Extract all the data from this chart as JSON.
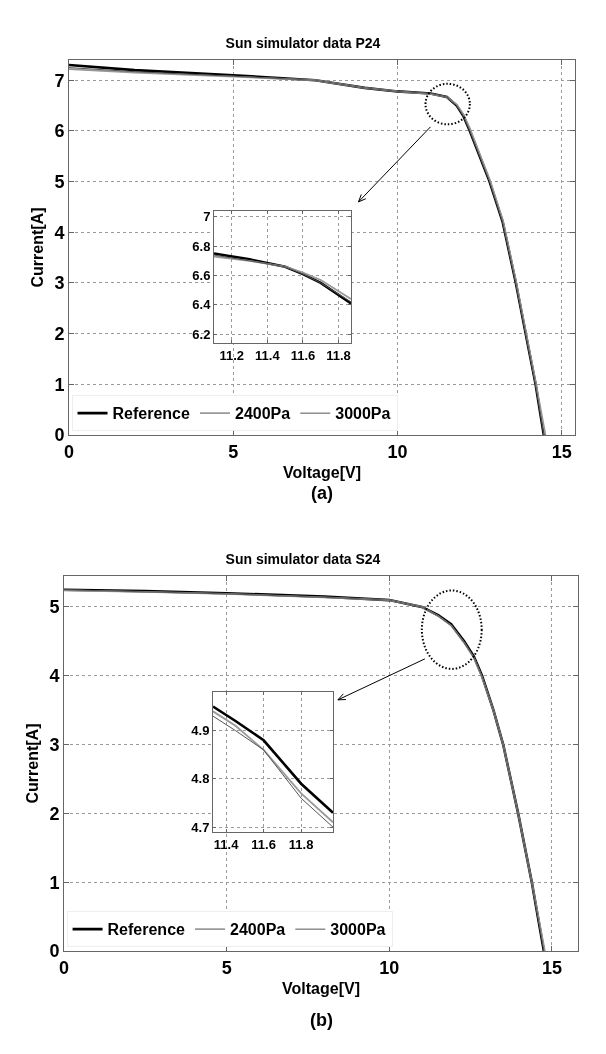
{
  "chart_data": [
    {
      "type": "line",
      "title": "Sun simulator data P24",
      "xlabel": "Voltage[V]",
      "ylabel": "Current[A]",
      "annotations": [
        "(a)"
      ],
      "xlim": [
        0,
        15.4
      ],
      "ylim": [
        0,
        7.4
      ],
      "xticks": [
        0,
        5,
        10,
        15
      ],
      "yticks": [
        0,
        1,
        2,
        3,
        4,
        5,
        6,
        7
      ],
      "grid": true,
      "legend": "bottom left",
      "line_style": "solid",
      "marker": "none",
      "series": [
        {
          "name": "Reference",
          "color": "#000000",
          "x": [
            0,
            2,
            5,
            7.5,
            9,
            10,
            11,
            11.5,
            11.8,
            12,
            12.2,
            12.5,
            12.8,
            13.2,
            13.6,
            13.9,
            14.2,
            14.45
          ],
          "values": [
            7.3,
            7.2,
            7.1,
            7.0,
            6.85,
            6.78,
            6.74,
            6.67,
            6.5,
            6.3,
            6.0,
            5.5,
            5.0,
            4.2,
            3.0,
            2.0,
            1.0,
            0
          ]
        },
        {
          "name": "2400Pa",
          "color": "#999999",
          "x": [
            0,
            2,
            5,
            7.5,
            9,
            10,
            11,
            11.5,
            11.8,
            12,
            12.2,
            12.5,
            12.8,
            13.2,
            13.6,
            13.9,
            14.2,
            14.5
          ],
          "values": [
            7.22,
            7.15,
            7.07,
            7.0,
            6.85,
            6.78,
            6.73,
            6.67,
            6.52,
            6.33,
            6.05,
            5.55,
            5.05,
            4.25,
            3.05,
            2.05,
            1.05,
            0
          ]
        },
        {
          "name": "3000Pa",
          "color": "#555555",
          "x": [
            0,
            2,
            5,
            7.5,
            9,
            10,
            11,
            11.5,
            11.8,
            12,
            12.2,
            12.5,
            12.8,
            13.2,
            13.6,
            13.9,
            14.2,
            14.45
          ],
          "values": [
            7.25,
            7.17,
            7.08,
            7.0,
            6.85,
            6.78,
            6.74,
            6.67,
            6.5,
            6.3,
            6.0,
            5.5,
            5.0,
            4.2,
            3.0,
            2.0,
            1.0,
            0
          ]
        }
      ]
    },
    {
      "type": "line",
      "xlim": [
        11.1,
        11.87
      ],
      "ylim": [
        6.14,
        7.04
      ],
      "xticks": [
        11.2,
        11.4,
        11.6,
        11.8
      ],
      "yticks": [
        6.2,
        6.4,
        6.6,
        6.8,
        7
      ],
      "grid": true,
      "line_style": "solid",
      "marker": "none",
      "series": [
        {
          "color": "#000000",
          "x": [
            11.1,
            11.3,
            11.5,
            11.6,
            11.7,
            11.87
          ],
          "values": [
            6.75,
            6.71,
            6.66,
            6.61,
            6.55,
            6.41
          ]
        },
        {
          "color": "#999999",
          "x": [
            11.1,
            11.3,
            11.5,
            11.6,
            11.7,
            11.87
          ],
          "values": [
            6.73,
            6.7,
            6.66,
            6.62,
            6.57,
            6.44
          ]
        },
        {
          "color": "#555555",
          "x": [
            11.1,
            11.3,
            11.5,
            11.6,
            11.7,
            11.87
          ],
          "values": [
            6.74,
            6.7,
            6.66,
            6.61,
            6.55,
            6.42
          ]
        }
      ]
    },
    {
      "type": "line",
      "title": "Sun simulator data S24",
      "xlabel": "Voltage[V]",
      "ylabel": "Current[A]",
      "annotations": [
        "(b)"
      ],
      "xlim": [
        0,
        15.8
      ],
      "ylim": [
        0,
        5.45
      ],
      "xticks": [
        0,
        5,
        10,
        15
      ],
      "yticks": [
        0,
        1,
        2,
        3,
        4,
        5
      ],
      "grid": true,
      "legend": "bottom left",
      "line_style": "solid",
      "marker": "none",
      "series": [
        {
          "name": "Reference",
          "color": "#000000",
          "x": [
            0,
            2.5,
            5,
            8,
            10,
            11,
            11.5,
            11.9,
            12.3,
            12.6,
            12.85,
            13.2,
            13.5,
            13.96,
            14.38,
            14.75
          ],
          "values": [
            5.25,
            5.23,
            5.2,
            5.15,
            5.1,
            5.0,
            4.88,
            4.75,
            4.5,
            4.28,
            4.0,
            3.5,
            3.0,
            2.0,
            1.0,
            0
          ]
        },
        {
          "name": "2400Pa",
          "color": "#999999",
          "x": [
            0,
            2.5,
            5,
            8,
            10,
            11,
            11.5,
            11.9,
            12.3,
            12.6,
            12.85,
            13.2,
            13.5,
            13.96,
            14.38,
            14.78
          ],
          "values": [
            5.24,
            5.22,
            5.19,
            5.14,
            5.1,
            5.0,
            4.87,
            4.73,
            4.48,
            4.26,
            3.98,
            3.5,
            3.0,
            2.0,
            1.0,
            0
          ]
        },
        {
          "name": "3000Pa",
          "color": "#555555",
          "x": [
            0,
            2.5,
            5,
            8,
            10,
            11,
            11.5,
            11.9,
            12.3,
            12.6,
            12.85,
            13.2,
            13.5,
            13.96,
            14.38,
            14.75
          ],
          "values": [
            5.25,
            5.22,
            5.19,
            5.14,
            5.1,
            5.0,
            4.87,
            4.73,
            4.48,
            4.27,
            3.99,
            3.5,
            3.0,
            2.0,
            1.0,
            0
          ]
        }
      ]
    },
    {
      "type": "line",
      "xlim": [
        11.33,
        11.97
      ],
      "ylim": [
        4.69,
        4.98
      ],
      "xticks": [
        11.4,
        11.6,
        11.8
      ],
      "yticks": [
        4.7,
        4.8,
        4.9
      ],
      "grid": true,
      "line_style": "solid",
      "marker": "none",
      "series": [
        {
          "color": "#000000",
          "x": [
            11.33,
            11.45,
            11.6,
            11.8,
            11.97
          ],
          "values": [
            4.95,
            4.92,
            4.88,
            4.79,
            4.73
          ]
        },
        {
          "color": "#999999",
          "x": [
            11.33,
            11.45,
            11.6,
            11.8,
            11.97
          ],
          "values": [
            4.94,
            4.91,
            4.86,
            4.77,
            4.71
          ]
        },
        {
          "color": "#555555",
          "x": [
            11.33,
            11.45,
            11.6,
            11.8,
            11.97
          ],
          "values": [
            4.93,
            4.9,
            4.86,
            4.76,
            4.7
          ]
        }
      ]
    }
  ]
}
